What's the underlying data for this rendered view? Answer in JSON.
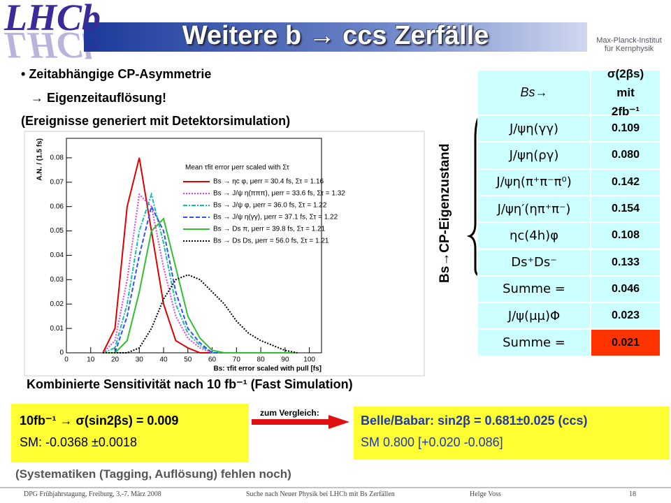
{
  "header": {
    "logo": "LHCb",
    "institute": [
      "Max-Planck-Institut",
      "für Kernphysik"
    ],
    "title": "Weitere b → ccs Zerfälle"
  },
  "bullets": [
    "Zeitabhängige CP-Asymmetrie",
    "→  Eigenzeitauflösung!",
    "(Ereignisse generiert mit Detektorsimulation)"
  ],
  "chart_data": {
    "type": "line",
    "ylabel": "A.N. / (1.5 fs)",
    "xlabel": "Bs: τfit error scaled with pull [fs]",
    "legend_title": "Mean τfit error μerr scaled with Στ",
    "x": [
      15,
      20,
      25,
      30,
      35,
      40,
      45,
      50,
      55,
      60,
      65,
      70,
      75,
      80,
      85,
      90,
      95
    ],
    "xlim": [
      0,
      105
    ],
    "xticks": [
      0,
      10,
      20,
      30,
      40,
      50,
      60,
      70,
      80,
      90,
      100
    ],
    "ylim": [
      0,
      0.088
    ],
    "yticks": [
      0,
      0.01,
      0.02,
      0.03,
      0.04,
      0.05,
      0.06,
      0.07,
      0.08
    ],
    "series": [
      {
        "name": "Bs → ηc φ, μerr = 30.4 fs, Στ = 1.16",
        "color": "#e00000",
        "style": "solid",
        "values": [
          0,
          0.01,
          0.06,
          0.08,
          0.05,
          0.02,
          0.005,
          0.002,
          0,
          0,
          0,
          0,
          0,
          0,
          0,
          0,
          0
        ]
      },
      {
        "name": "Bs → J/ψ η(πππ), μerr = 33.6 fs, Στ = 1.32",
        "color": "#e040e0",
        "style": "dotted",
        "values": [
          0,
          0.005,
          0.03,
          0.065,
          0.06,
          0.035,
          0.015,
          0.006,
          0.002,
          0,
          0,
          0,
          0,
          0,
          0,
          0,
          0
        ]
      },
      {
        "name": "Bs → J/ψ φ, μerr = 36.0 fs, Στ = 1.22",
        "color": "#10c0a0",
        "style": "dashdot",
        "values": [
          0,
          0.002,
          0.02,
          0.05,
          0.065,
          0.045,
          0.02,
          0.008,
          0.003,
          0,
          0,
          0,
          0,
          0,
          0,
          0,
          0
        ]
      },
      {
        "name": "Bs → J/ψ η(γγ), μerr = 37.1 fs, Στ = 1.22",
        "color": "#3050ff",
        "style": "dashed",
        "values": [
          0,
          0,
          0.015,
          0.04,
          0.06,
          0.05,
          0.025,
          0.01,
          0.004,
          0,
          0,
          0,
          0,
          0,
          0,
          0,
          0
        ]
      },
      {
        "name": "Bs → Ds π, μerr = 39.8 fs, Στ = 1.21",
        "color": "#30c030",
        "style": "solid",
        "values": [
          0,
          0,
          0.005,
          0.025,
          0.05,
          0.055,
          0.035,
          0.015,
          0.006,
          0.001,
          0,
          0,
          0,
          0,
          0,
          0,
          0
        ]
      },
      {
        "name": "Bs → Ds Ds, μerr = 56.0 fs, Στ = 1.21",
        "color": "#000000",
        "style": "dotted",
        "values": [
          0,
          0,
          0,
          0.002,
          0.01,
          0.022,
          0.03,
          0.032,
          0.03,
          0.025,
          0.02,
          0.013,
          0.008,
          0.005,
          0.003,
          0.001,
          0
        ]
      }
    ]
  },
  "table": {
    "header": [
      "Bs→",
      "σ(2βs) mit 2fb⁻¹"
    ],
    "rows": [
      [
        "J/ψη(γγ)",
        "0.109"
      ],
      [
        "J/ψη(ργ)",
        "0.080"
      ],
      [
        "J/ψη(π⁺π⁻π⁰)",
        "0.142"
      ],
      [
        "J/ψη′(ηπ⁺π⁻)",
        "0.154"
      ],
      [
        "ηc(4h)φ",
        "0.108"
      ],
      [
        "Ds⁺Ds⁻",
        "0.133"
      ],
      [
        "Summe =",
        "0.046"
      ],
      [
        "J/ψ(μμ)Φ",
        "0.023"
      ],
      [
        "Summe =",
        "0.021"
      ]
    ],
    "side_label": "Bs→CP-Eigenzustand"
  },
  "sensitivity": "Kombinierte Sensitivität nach 10 fb⁻¹  (Fast Simulation)",
  "result_box": [
    "10fb⁻¹ → σ(sin2βs) = 0.009",
    "SM:  -0.0368 ±0.0018"
  ],
  "compare_label": "zum Vergleich:",
  "compare_box": [
    "Belle/Babar: sin2β = 0.681±0.025  (ccs)",
    "SM 0.800 [+0.020 -0.086]"
  ],
  "note": "(Systematiken (Tagging, Auflösung) fehlen noch)",
  "footer": [
    "DPG Frühjahrstagung,    Freiburg,    3.-7. März 2008",
    "Suche nach Neuer Physik bei LHCb mit Bs Zerfällen",
    "Helge Voss",
    "18"
  ]
}
